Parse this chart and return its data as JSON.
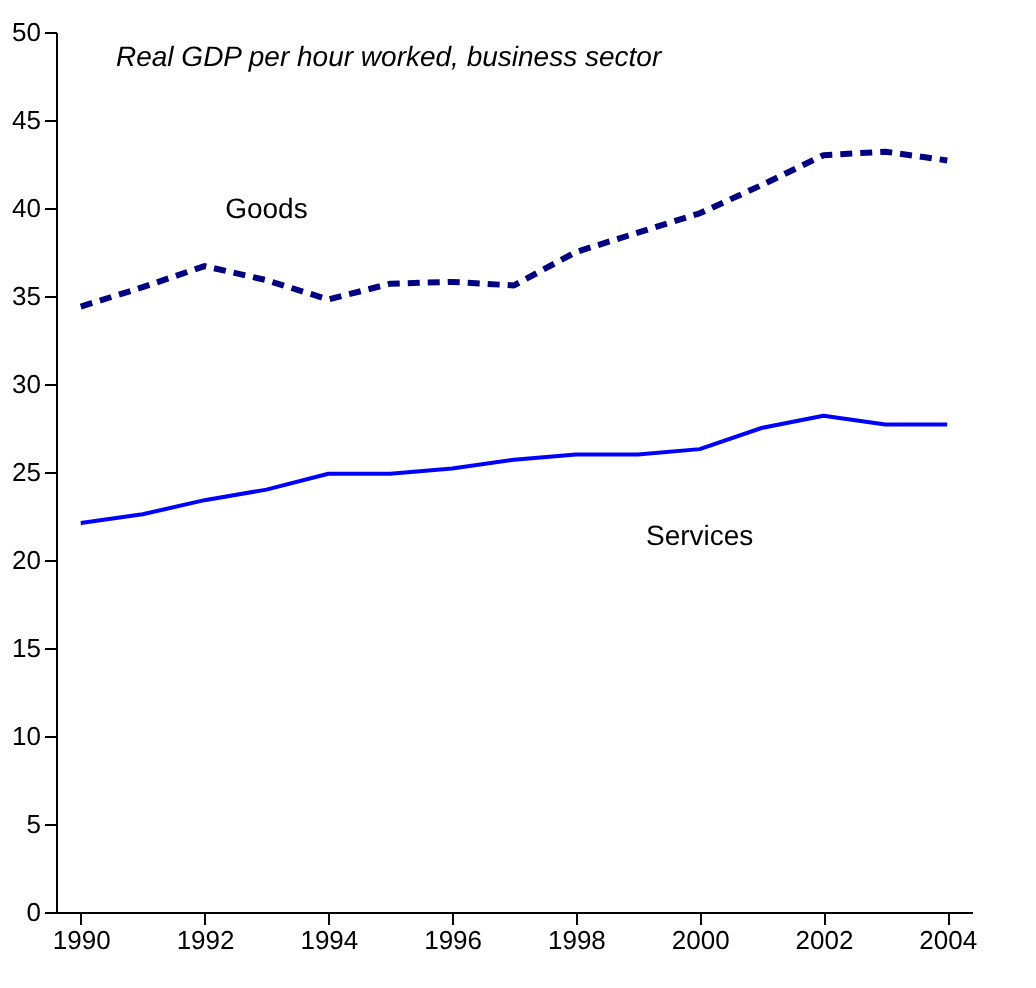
{
  "chart_data": {
    "type": "line",
    "title": "Real GDP per hour worked, business sector",
    "x": [
      1990,
      1991,
      1992,
      1993,
      1994,
      1995,
      1996,
      1997,
      1998,
      1999,
      2000,
      2001,
      2002,
      2003,
      2004
    ],
    "series": [
      {
        "name": "Goods",
        "color": "#000080",
        "line_style": "dashed",
        "values": [
          34.4,
          35.5,
          36.7,
          35.9,
          34.8,
          35.7,
          35.8,
          35.6,
          37.5,
          38.6,
          39.7,
          41.3,
          43.0,
          43.2,
          42.7
        ]
      },
      {
        "name": "Services",
        "color": "#0000ff",
        "line_style": "solid",
        "values": [
          22.1,
          22.6,
          23.4,
          24.0,
          24.9,
          24.9,
          25.2,
          25.7,
          26.0,
          26.0,
          26.3,
          27.5,
          28.2,
          27.7,
          27.7
        ]
      }
    ],
    "xlim": [
      1989.6,
      2004.4
    ],
    "xticks": [
      1990,
      1992,
      1994,
      1996,
      1998,
      2000,
      2002,
      2004
    ],
    "ylim": [
      0,
      50
    ],
    "yticks": [
      0,
      5,
      10,
      15,
      20,
      25,
      30,
      35,
      40,
      45,
      50
    ],
    "grid": false,
    "legend": false,
    "marker": "none"
  }
}
